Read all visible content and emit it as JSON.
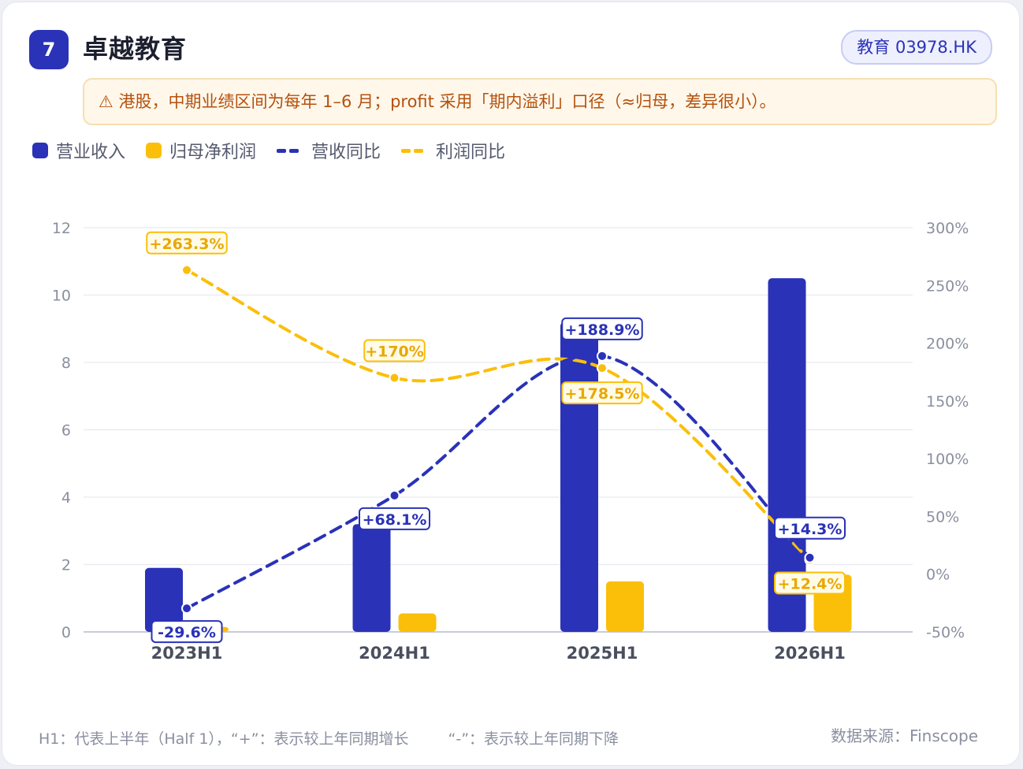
{
  "header": {
    "rank": "7",
    "title": "卓越教育",
    "tag": "教育 03978.HK"
  },
  "note": "⚠ 港股，中期业绩区间为每年 1–6 月；profit 采用「期内溢利」口径（≈归母，差异很小）。",
  "legend": {
    "revenue": "营业收入",
    "profit": "归母净利润",
    "revenue_yoy": "营收同比",
    "profit_yoy": "利润同比"
  },
  "colors": {
    "revenue": "#2a32b8",
    "profit": "#fbbf0a",
    "axis_text": "#8a8f9f",
    "grid": "#e8eaf0"
  },
  "chart_data": {
    "type": "bar",
    "categories": [
      "2023H1",
      "2024H1",
      "2025H1",
      "2026H1"
    ],
    "series": [
      {
        "name": "营业收入",
        "type": "bar",
        "axis": "left",
        "values": [
          1.9,
          3.2,
          9.2,
          10.5
        ]
      },
      {
        "name": "归母净利润",
        "type": "bar",
        "axis": "left",
        "values": [
          0.15,
          0.55,
          1.5,
          1.7
        ]
      },
      {
        "name": "营收同比",
        "type": "line",
        "axis": "right",
        "values": [
          -29.6,
          68.1,
          188.9,
          14.3
        ],
        "labels": [
          "-29.6%",
          "+68.1%",
          "+188.9%",
          "+14.3%"
        ]
      },
      {
        "name": "利润同比",
        "type": "line",
        "axis": "right",
        "values": [
          263.3,
          170,
          178.5,
          12.4
        ],
        "labels": [
          "+263.3%",
          "+170%",
          "+178.5%",
          "+12.4%"
        ]
      }
    ],
    "y_left": {
      "ylim": [
        0,
        12
      ],
      "ticks": [
        "0",
        "2",
        "4",
        "6",
        "8",
        "10",
        "12"
      ]
    },
    "y_right": {
      "ylim": [
        -50,
        300
      ],
      "ticks": [
        "-50%",
        "0%",
        "50%",
        "100%",
        "150%",
        "200%",
        "250%",
        "300%"
      ]
    },
    "grid": true,
    "legend_position": "top-left"
  },
  "footer": {
    "definition": "H1：代表上半年（Half 1），“+”：表示较上年同期增长",
    "minus": "“-”：表示较上年同期下降",
    "source": "数据来源：Finscope"
  }
}
